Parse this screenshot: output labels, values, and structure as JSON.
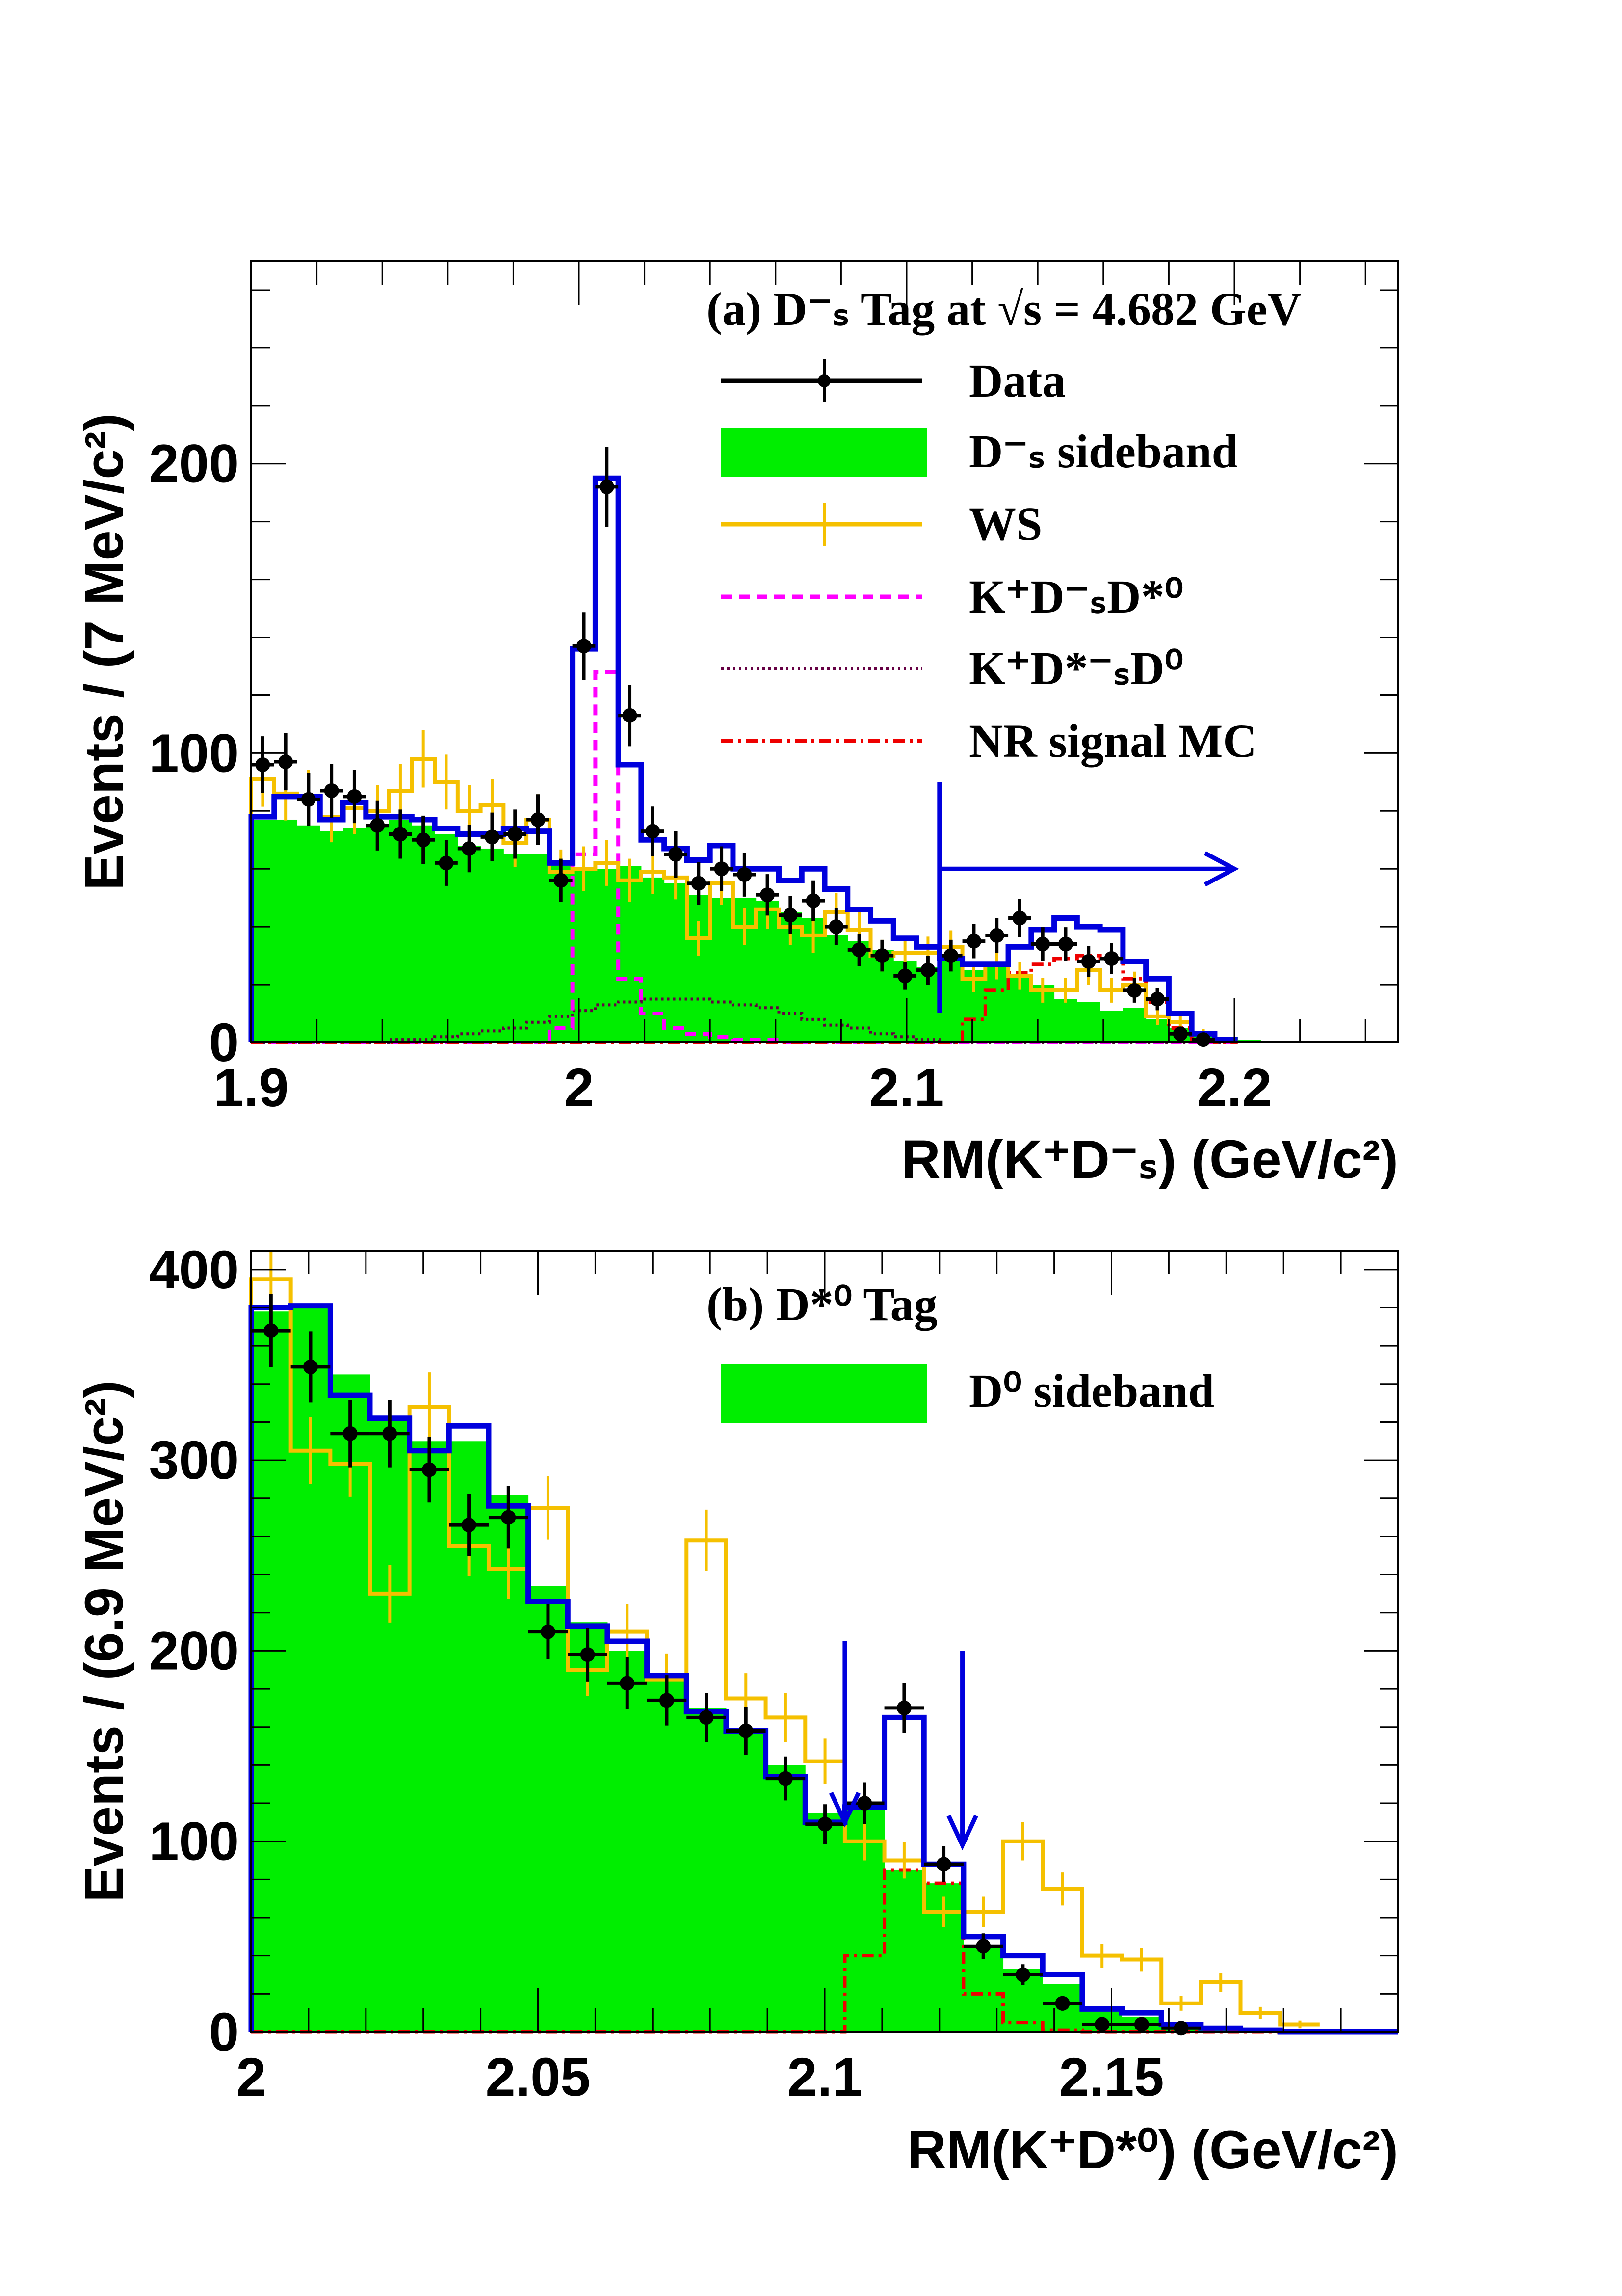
{
  "colors": {
    "data": "#000000",
    "sideband": "#00ee00",
    "ws": "#f5c000",
    "fit": "#0000dd",
    "kdsd0star": "#ff00ff",
    "kdsstard0": "#660044",
    "nr": "#ee0000",
    "cut_arrow": "#0000dd"
  },
  "chart_data": [
    {
      "id": "a",
      "type": "histogram",
      "title": "(a) D⁻ₛ Tag at  √s = 4.682 GeV",
      "ylabel": "Events / (7 MeV/c²)",
      "xlabel": "RM(K⁺D⁻ₛ) (GeV/c²)",
      "xlim": [
        1.9,
        2.25
      ],
      "ylim": [
        0,
        270
      ],
      "bin_width": 0.007,
      "x_start": 1.9,
      "xticks": [
        {
          "v": 1.9,
          "label": "1.9"
        },
        {
          "v": 2.0,
          "label": "2"
        },
        {
          "v": 2.1,
          "label": "2.1"
        },
        {
          "v": 2.2,
          "label": "2.2"
        }
      ],
      "yticks": [
        {
          "v": 0,
          "label": "0"
        },
        {
          "v": 100,
          "label": "100"
        },
        {
          "v": 200,
          "label": "200"
        }
      ],
      "legend": [
        {
          "key": "data",
          "label": "Data"
        },
        {
          "key": "sideband",
          "label": "D⁻ₛ sideband"
        },
        {
          "key": "ws",
          "label": "WS"
        },
        {
          "key": "kdsd0star",
          "label": "K⁺D⁻ₛD*⁰"
        },
        {
          "key": "kdsstard0",
          "label": "K⁺D*⁻ₛD⁰"
        },
        {
          "key": "nr",
          "label": "NR signal MC"
        }
      ],
      "cut_arrow": {
        "x": 2.11,
        "y": 90,
        "arrow_to_x": 2.2,
        "arrow_y": 60
      },
      "series": {
        "data": [
          96,
          97,
          84,
          87,
          85,
          75,
          72,
          70,
          62,
          67,
          71,
          72,
          77,
          56,
          137,
          192,
          113,
          73,
          65,
          55,
          60,
          58,
          51,
          44,
          49,
          40,
          32,
          30,
          23,
          25,
          30,
          35,
          37,
          43,
          34,
          34,
          28,
          29,
          18,
          15,
          3,
          1
        ],
        "sideband": [
          77,
          77,
          75,
          73,
          74,
          75,
          77,
          75,
          72,
          68,
          67,
          65,
          65,
          62,
          60,
          60,
          61,
          57,
          55,
          51,
          50,
          50,
          49,
          45,
          43,
          37,
          35,
          32,
          28,
          26,
          28,
          25,
          27,
          23,
          20,
          15,
          14,
          11,
          12,
          8,
          5,
          3,
          2,
          1
        ],
        "ws": [
          91,
          86,
          85,
          78,
          81,
          80,
          87,
          98,
          90,
          80,
          82,
          69,
          77,
          59,
          60,
          62,
          56,
          59,
          57,
          36,
          55,
          40,
          46,
          40,
          37,
          45,
          39,
          30,
          31,
          31,
          33,
          22,
          27,
          23,
          18,
          18,
          25,
          18,
          20,
          9,
          7,
          3,
          1
        ],
        "fit": [
          78,
          85,
          85,
          77,
          83,
          78,
          78,
          77,
          74,
          72,
          72,
          74,
          73,
          62,
          136,
          195,
          96,
          70,
          67,
          63,
          68,
          60,
          60,
          56,
          60,
          53,
          46,
          42,
          36,
          33,
          29,
          27,
          27,
          33,
          39,
          43,
          40,
          39,
          28,
          22,
          10,
          3,
          1
        ],
        "kdsd0star": [
          0,
          0,
          0,
          0,
          0,
          0,
          0,
          0,
          0,
          0,
          0,
          0,
          0,
          5,
          65,
          128,
          22,
          10,
          5,
          3,
          2,
          1,
          1,
          0,
          0,
          0,
          0,
          0,
          0,
          0,
          0,
          0,
          0,
          0,
          0,
          0,
          0,
          0,
          0,
          0,
          0,
          0,
          0
        ],
        "kdsstard0": [
          0,
          0,
          0,
          0,
          0,
          0,
          1,
          1,
          2,
          3,
          4,
          5,
          7,
          9,
          11,
          13,
          14,
          15,
          15,
          15,
          14,
          13,
          12,
          10,
          8,
          6,
          5,
          3,
          2,
          1,
          0,
          0,
          0,
          0,
          0,
          0,
          0,
          0,
          0,
          0,
          0,
          0,
          0
        ],
        "nr": [
          0,
          0,
          0,
          0,
          0,
          0,
          0,
          0,
          0,
          0,
          0,
          0,
          0,
          0,
          0,
          0,
          0,
          0,
          0,
          0,
          0,
          0,
          0,
          0,
          0,
          0,
          0,
          0,
          0,
          0,
          0,
          8,
          18,
          24,
          27,
          29,
          30,
          29,
          22,
          14,
          5,
          1,
          0
        ]
      }
    },
    {
      "id": "b",
      "type": "histogram",
      "title": "(b) D*⁰ Tag",
      "ylabel": "Events / (6.9 MeV/c²)",
      "xlabel": "RM(K⁺D*⁰) (GeV/c²)",
      "xlim": [
        2.0,
        2.2
      ],
      "ylim": [
        0,
        410
      ],
      "bin_width": 0.0069,
      "x_start": 2.0,
      "xticks": [
        {
          "v": 2.0,
          "label": "2"
        },
        {
          "v": 2.05,
          "label": "2.05"
        },
        {
          "v": 2.1,
          "label": "2.1"
        },
        {
          "v": 2.15,
          "label": "2.15"
        }
      ],
      "yticks": [
        {
          "v": 0,
          "label": "0"
        },
        {
          "v": 100,
          "label": "100"
        },
        {
          "v": 200,
          "label": "200"
        },
        {
          "v": 300,
          "label": "300"
        },
        {
          "v": 400,
          "label": "400"
        }
      ],
      "legend": [
        {
          "key": "sideband",
          "label": "D⁰ sideband"
        }
      ],
      "cut_arrows": [
        {
          "x": 2.1035,
          "y_top": 205,
          "y_bottom": 110
        },
        {
          "x": 2.124,
          "y_top": 200,
          "y_bottom": 98
        }
      ],
      "series": {
        "data": [
          368,
          349,
          314,
          314,
          295,
          266,
          270,
          210,
          198,
          183,
          174,
          165,
          158,
          133,
          109,
          120,
          170,
          88,
          45,
          30,
          15,
          4,
          4,
          2
        ],
        "sideband": [
          378,
          381,
          345,
          322,
          310,
          310,
          282,
          234,
          215,
          200,
          185,
          170,
          158,
          140,
          115,
          120,
          85,
          78,
          45,
          33,
          25,
          12,
          8,
          5,
          3,
          2,
          1
        ],
        "ws": [
          395,
          305,
          298,
          230,
          328,
          255,
          243,
          275,
          190,
          210,
          185,
          258,
          175,
          165,
          142,
          100,
          90,
          63,
          63,
          100,
          75,
          40,
          38,
          15,
          26,
          10,
          4
        ],
        "fit": [
          380,
          381,
          334,
          322,
          305,
          318,
          276,
          226,
          213,
          205,
          187,
          168,
          158,
          134,
          110,
          118,
          165,
          88,
          50,
          40,
          30,
          12,
          10,
          4,
          2,
          1,
          0,
          0,
          0
        ],
        "nr": [
          0,
          0,
          0,
          0,
          0,
          0,
          0,
          0,
          0,
          0,
          0,
          0,
          0,
          0,
          0,
          40,
          85,
          78,
          20,
          5,
          1,
          0,
          0,
          0,
          0,
          0
        ]
      }
    }
  ]
}
